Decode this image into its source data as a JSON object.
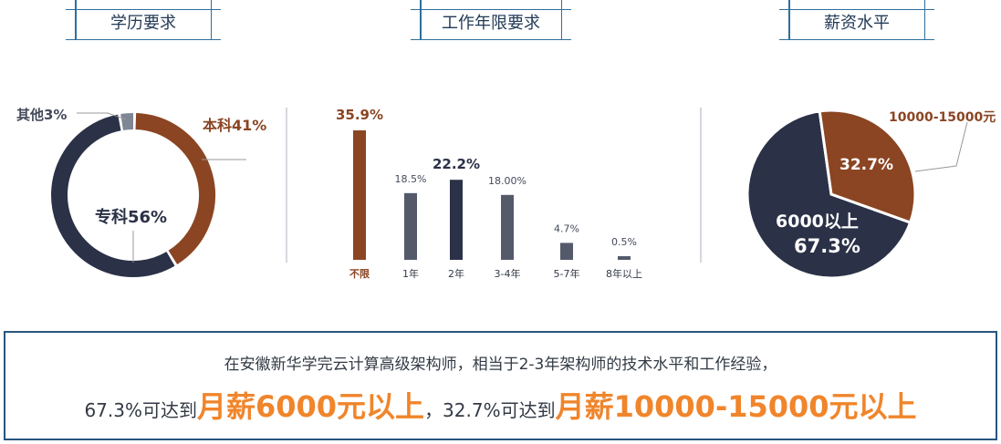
{
  "headers": {
    "education": "学历要求",
    "experience": "工作年限要求",
    "salary": "薪资水平"
  },
  "chart_data": [
    {
      "type": "pie",
      "variant": "donut",
      "labels": [
        "本科41%",
        "专科56%",
        "其他3%"
      ],
      "slices": [
        {
          "name": "本科",
          "value": 41,
          "color": "#8b4523"
        },
        {
          "name": "专科",
          "value": 56,
          "color": "#2b3147"
        },
        {
          "name": "其他",
          "value": 3,
          "color": "#7f8694"
        }
      ]
    },
    {
      "type": "bar",
      "categories": [
        "不限",
        "1年",
        "2年",
        "3-4年",
        "5-7年",
        "8年以上"
      ],
      "values": [
        35.9,
        18.5,
        22.2,
        18.0,
        4.7,
        0.5
      ],
      "data_labels": [
        "35.9%",
        "18.5%",
        "22.2%",
        "18.00%",
        "4.7%",
        "0.5%"
      ],
      "colors": [
        "#8b4523",
        "#555a6b",
        "#2b3147",
        "#555a6b",
        "#555a6b",
        "#555a6b"
      ]
    },
    {
      "type": "pie",
      "slices": [
        {
          "name": "6000以上",
          "value": 67.3,
          "color": "#2b3147"
        },
        {
          "name": "10000-15000元",
          "value": 32.7,
          "color": "#8b4523"
        }
      ],
      "labels": {
        "inner_dark_name": "6000以上",
        "inner_dark_value": "67.3%",
        "inner_brown_value": "32.7%",
        "callout": "10000-15000元"
      }
    }
  ],
  "summary": {
    "line1": "在安徽新华学完云计算高级架构师，相当于2-3年架构师的技术水平和工作经验，",
    "p1": "67.3%可达到",
    "h1": "月薪6000元以上",
    "mid": "，32.7%可达到",
    "h2": "月薪10000-15000元以上"
  }
}
